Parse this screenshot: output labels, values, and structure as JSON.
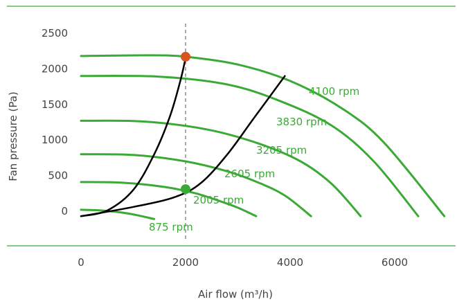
{
  "chart_data": {
    "type": "line",
    "xlabel": "Air flow (m³/h)",
    "ylabel": "Fan pressure (Pa)",
    "xlim": [
      0,
      7000
    ],
    "ylim": [
      0,
      2500
    ],
    "x_ticks": [
      0,
      2000,
      4000,
      6000
    ],
    "y_ticks": [
      0,
      500,
      1000,
      1500,
      2000,
      2500
    ],
    "grid": false,
    "colors": {
      "curve": "#3aaa35",
      "system_curve": "#000000",
      "marker_high": "#d9531e",
      "marker_low": "#3aaa35",
      "reference_line": "#aaaaaa",
      "frame_line": "#3aaa35"
    },
    "series": [
      {
        "name": "875 rpm",
        "x": [
          0,
          400,
          800,
          1100,
          1400
        ],
        "y": [
          20,
          10,
          -20,
          -60,
          -110
        ]
      },
      {
        "name": "2005 rpm",
        "x": [
          0,
          800,
          1600,
          2200,
          2700,
          3000,
          3350
        ],
        "y": [
          410,
          400,
          340,
          250,
          130,
          50,
          -70
        ]
      },
      {
        "name": "2605 rpm",
        "x": [
          0,
          1000,
          2000,
          2800,
          3400,
          3900,
          4400
        ],
        "y": [
          800,
          790,
          700,
          560,
          400,
          220,
          -70
        ]
      },
      {
        "name": "3205 rpm",
        "x": [
          0,
          1200,
          2400,
          3400,
          4200,
          4800,
          5350
        ],
        "y": [
          1270,
          1260,
          1150,
          950,
          700,
          380,
          -70
        ]
      },
      {
        "name": "3830 rpm",
        "x": [
          0,
          1500,
          2800,
          3800,
          4800,
          5600,
          6450
        ],
        "y": [
          1900,
          1890,
          1780,
          1550,
          1200,
          700,
          -70
        ]
      },
      {
        "name": "4100 rpm",
        "x": [
          0,
          1300,
          2000,
          3000,
          4000,
          5000,
          5800,
          6950
        ],
        "y": [
          2180,
          2190,
          2170,
          2060,
          1830,
          1440,
          960,
          -70
        ]
      }
    ],
    "system_curves": [
      {
        "x": [
          0,
          500,
          1000,
          1400,
          1700,
          1900,
          2000
        ],
        "y": [
          -70,
          10,
          300,
          800,
          1330,
          1830,
          2150
        ]
      },
      {
        "x": [
          0,
          1000,
          1800,
          2300,
          2800,
          3300,
          3900
        ],
        "y": [
          -70,
          60,
          200,
          400,
          800,
          1300,
          1900
        ]
      }
    ],
    "reference_line_x": 2000,
    "markers": [
      {
        "x": 2000,
        "y": 2170,
        "color": "marker_high"
      },
      {
        "x": 2000,
        "y": 310,
        "color": "marker_low"
      }
    ]
  }
}
